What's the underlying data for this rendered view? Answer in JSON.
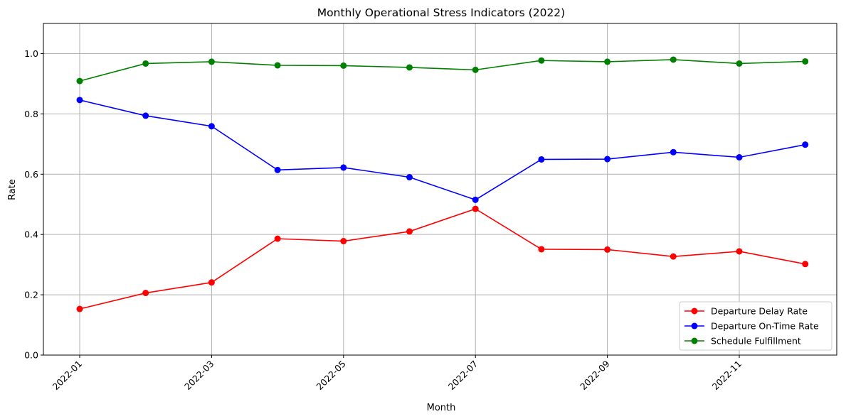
{
  "chart_data": {
    "type": "line",
    "title": "Monthly Operational Stress Indicators (2022)",
    "xlabel": "Month",
    "ylabel": "Rate",
    "ylim": [
      0,
      1.1
    ],
    "yticks": [
      "0.0",
      "0.2",
      "0.4",
      "0.6",
      "0.8",
      "1.0"
    ],
    "ytick_values": [
      0,
      0.2,
      0.4,
      0.6,
      0.8,
      1.0
    ],
    "x": [
      "2022-01",
      "2022-02",
      "2022-03",
      "2022-04",
      "2022-05",
      "2022-06",
      "2022-07",
      "2022-08",
      "2022-09",
      "2022-10",
      "2022-11",
      "2022-12"
    ],
    "xticks": [
      "2022-01",
      "2022-03",
      "2022-05",
      "2022-07",
      "2022-09",
      "2022-11"
    ],
    "grid": true,
    "legend_position": "lower-right",
    "series": [
      {
        "name": "Departure Delay Rate",
        "color": "#ff0000",
        "values": [
          0.153,
          0.206,
          0.241,
          0.386,
          0.378,
          0.41,
          0.485,
          0.351,
          0.35,
          0.327,
          0.344,
          0.302
        ]
      },
      {
        "name": "Departure On-Time Rate",
        "color": "#0000ff",
        "values": [
          0.846,
          0.794,
          0.759,
          0.614,
          0.622,
          0.59,
          0.515,
          0.649,
          0.65,
          0.673,
          0.656,
          0.698
        ]
      },
      {
        "name": "Schedule Fulfillment",
        "color": "#008000",
        "values": [
          0.909,
          0.967,
          0.973,
          0.961,
          0.96,
          0.954,
          0.946,
          0.977,
          0.973,
          0.98,
          0.967,
          0.974
        ]
      }
    ]
  }
}
